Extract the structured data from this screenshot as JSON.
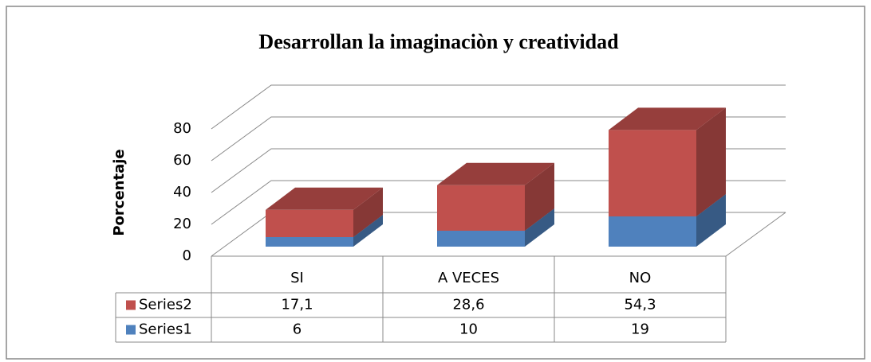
{
  "chart_data": {
    "type": "bar3d_stacked",
    "title": "Desarrollan la imaginaciòn y creatividad",
    "ylabel": "Porcentaje",
    "categories": [
      "SI",
      "A VECES",
      "NO"
    ],
    "series": [
      {
        "name": "Series1",
        "color": "#4f81bd",
        "values": [
          6,
          10,
          19
        ]
      },
      {
        "name": "Series2",
        "color": "#c0504d",
        "values": [
          17.1,
          28.6,
          54.3
        ],
        "value_labels": [
          "17,1",
          "28,6",
          "54,3"
        ]
      }
    ],
    "ylim": [
      0,
      80
    ],
    "yticks": [
      0,
      20,
      40,
      60,
      80
    ],
    "grid": true
  }
}
